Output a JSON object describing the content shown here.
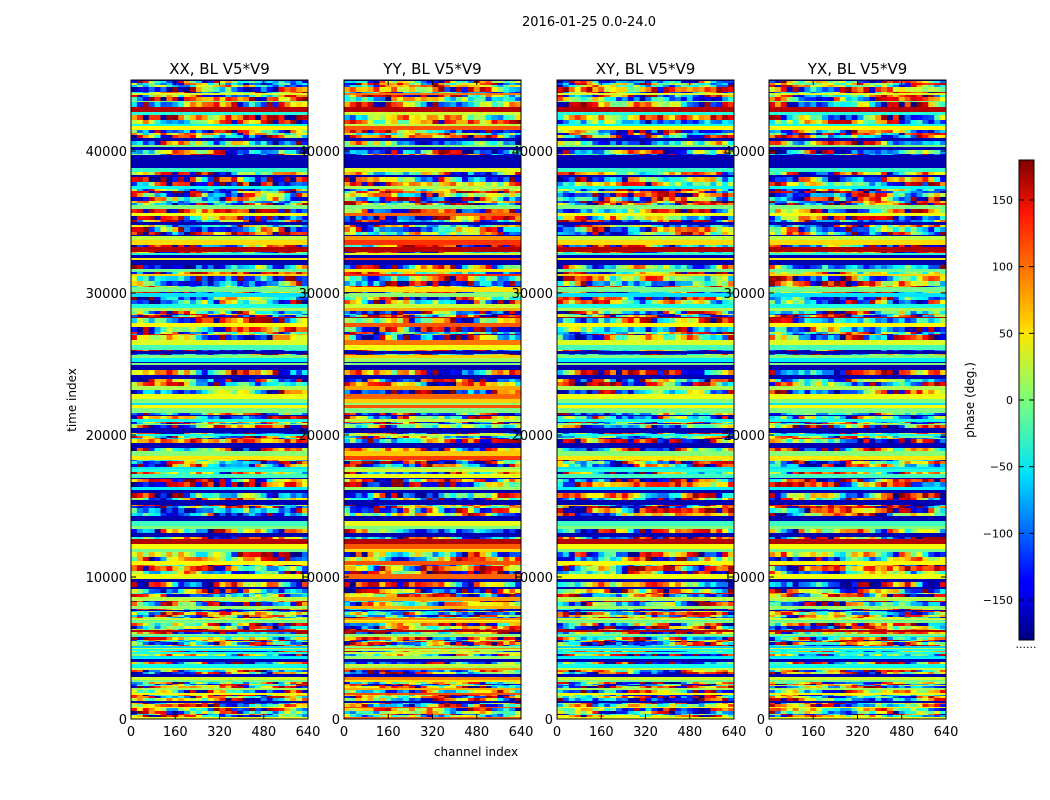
{
  "chart_data": {
    "type": "heatmap",
    "suptitle": "2016-01-25 0.0-24.0",
    "xlabel": "channel index",
    "ylabel": "time index",
    "xlim": [
      0,
      640
    ],
    "ylim": [
      0,
      45000
    ],
    "x_ticks": [
      "0",
      "160",
      "320",
      "480",
      "640"
    ],
    "y_ticks": [
      "0",
      "10000",
      "20000",
      "30000",
      "40000"
    ],
    "panels": [
      {
        "title": "XX, BL V5*V9",
        "mean_phase": 0
      },
      {
        "title": "YY, BL V5*V9",
        "mean_phase": 60
      },
      {
        "title": "XY, BL V5*V9",
        "mean_phase": 0
      },
      {
        "title": "YX, BL V5*V9",
        "mean_phase": 0
      }
    ],
    "colorbar": {
      "label": "phase (deg.)",
      "range": [
        -180,
        180
      ],
      "ticks": [
        "150",
        "100",
        "50",
        "0",
        "−50",
        "−100",
        "−150"
      ],
      "colormap": "jet",
      "footer": "......"
    }
  }
}
